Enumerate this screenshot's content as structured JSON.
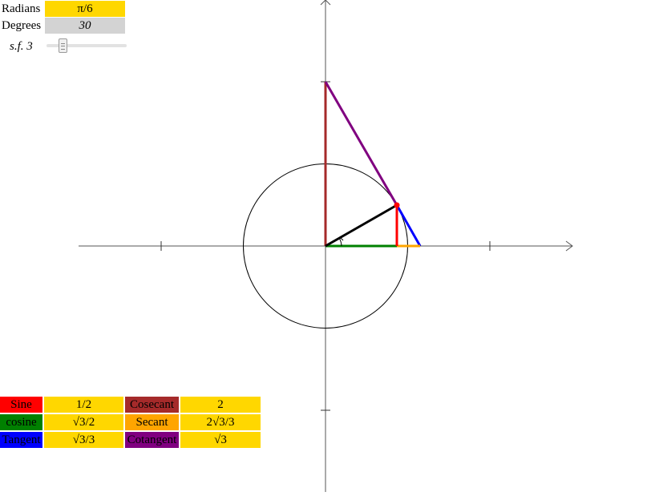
{
  "controls": {
    "radians_label": "Radians",
    "radians_value": "π/6",
    "degrees_label": "Degrees",
    "degrees_value": "30",
    "sf_label": "s.f. 3"
  },
  "colors": {
    "field_yellow": "#ffd700",
    "field_gray": "#d3d3d3",
    "sine": "#ff0000",
    "cosine": "#008000",
    "tangent": "#0000ff",
    "cosecant": "#a52a2a",
    "secant": "#ffa500",
    "cotangent": "#800080"
  },
  "table": {
    "rows": [
      {
        "left_name": "Sine",
        "left_value": "1/2",
        "right_name": "Cosecant",
        "right_value": "2"
      },
      {
        "left_name": "cosine",
        "left_value": "√3/2",
        "right_name": "Secant",
        "right_value": "2√3/3"
      },
      {
        "left_name": "Tangent",
        "left_value": "√3/3",
        "right_name": "Cotangent",
        "right_value": "√3"
      }
    ]
  },
  "angle_degrees": 30
}
